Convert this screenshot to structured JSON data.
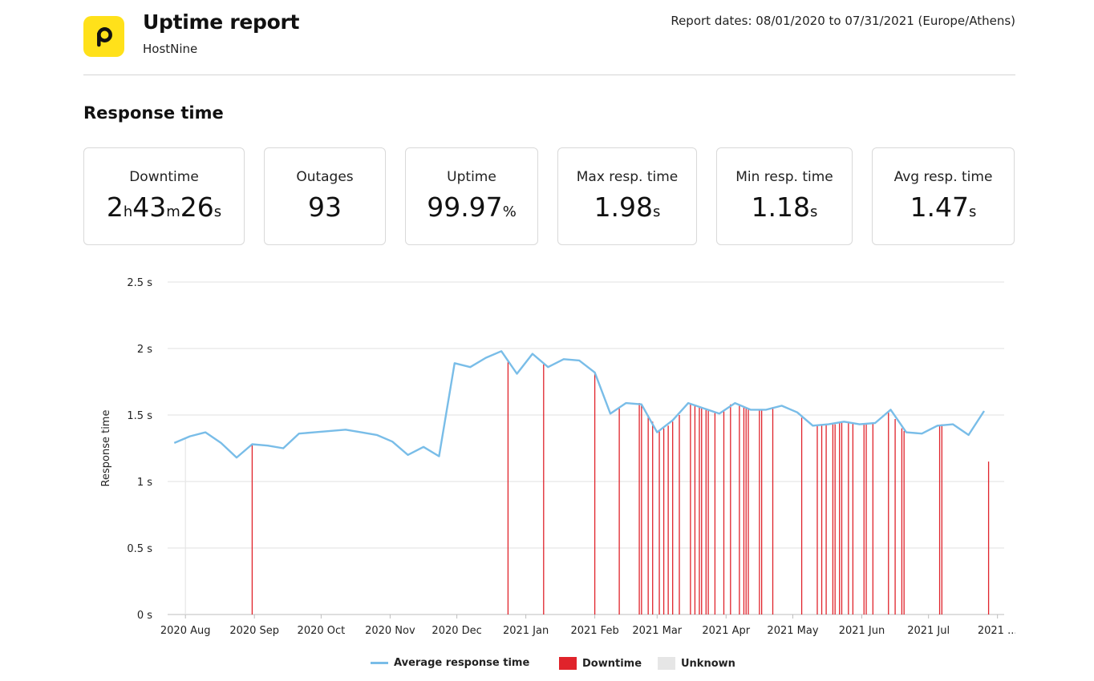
{
  "header": {
    "title": "Uptime report",
    "subtitle": "HostNine",
    "dates": "Report dates: 08/01/2020 to 07/31/2021 (Europe/Athens)",
    "logo_icon": "p-logo-icon"
  },
  "section_title": "Response time",
  "stats": [
    {
      "label": "Downtime",
      "parts": [
        [
          "2",
          false
        ],
        [
          "h",
          true
        ],
        [
          "43",
          false
        ],
        [
          "m",
          true
        ],
        [
          "26",
          false
        ],
        [
          "s",
          true
        ]
      ]
    },
    {
      "label": "Outages",
      "parts": [
        [
          "93",
          false
        ]
      ]
    },
    {
      "label": "Uptime",
      "parts": [
        [
          "99.97",
          false
        ],
        [
          "%",
          true
        ]
      ]
    },
    {
      "label": "Max resp. time",
      "parts": [
        [
          "1.98",
          false
        ],
        [
          "s",
          true
        ]
      ]
    },
    {
      "label": "Min resp. time",
      "parts": [
        [
          "1.18",
          false
        ],
        [
          "s",
          true
        ]
      ]
    },
    {
      "label": "Avg resp. time",
      "parts": [
        [
          "1.47",
          false
        ],
        [
          "s",
          true
        ]
      ]
    }
  ],
  "chart_data": {
    "type": "line",
    "ylabel": "Response time",
    "xlabel": "",
    "ylim": [
      0,
      2.5
    ],
    "xlim": [
      "2020-07-24",
      "2021-08-04"
    ],
    "y_ticks": [
      {
        "value": 0,
        "label": "0  s"
      },
      {
        "value": 0.5,
        "label": "0.5  s"
      },
      {
        "value": 1,
        "label": "1  s"
      },
      {
        "value": 1.5,
        "label": "1.5  s"
      },
      {
        "value": 2,
        "label": "2  s"
      },
      {
        "value": 2.5,
        "label": "2.5  s"
      }
    ],
    "x_ticks": [
      {
        "date": "2020-08-01",
        "label": "2020 Aug"
      },
      {
        "date": "2020-09-01",
        "label": "2020 Sep"
      },
      {
        "date": "2020-10-01",
        "label": "2020 Oct"
      },
      {
        "date": "2020-11-01",
        "label": "2020 Nov"
      },
      {
        "date": "2020-12-01",
        "label": "2020 Dec"
      },
      {
        "date": "2021-01-01",
        "label": "2021 Jan"
      },
      {
        "date": "2021-02-01",
        "label": "2021 Feb"
      },
      {
        "date": "2021-03-01",
        "label": "2021 Mar"
      },
      {
        "date": "2021-04-01",
        "label": "2021 Apr"
      },
      {
        "date": "2021-05-01",
        "label": "2021 May"
      },
      {
        "date": "2021-06-01",
        "label": "2021 Jun"
      },
      {
        "date": "2021-07-01",
        "label": "2021 Jul"
      },
      {
        "date": "2021-08-01",
        "label": "2021 ..."
      }
    ],
    "grid": true,
    "legend_position": "bottom",
    "series": [
      {
        "name": "Average response time",
        "color": "#79bde8",
        "points": [
          [
            "2020-07-27",
            1.29
          ],
          [
            "2020-08-03",
            1.34
          ],
          [
            "2020-08-10",
            1.37
          ],
          [
            "2020-08-17",
            1.29
          ],
          [
            "2020-08-24",
            1.18
          ],
          [
            "2020-08-31",
            1.28
          ],
          [
            "2020-09-07",
            1.27
          ],
          [
            "2020-09-14",
            1.25
          ],
          [
            "2020-09-21",
            1.36
          ],
          [
            "2020-09-28",
            1.37
          ],
          [
            "2020-10-05",
            1.38
          ],
          [
            "2020-10-12",
            1.39
          ],
          [
            "2020-10-19",
            1.37
          ],
          [
            "2020-10-26",
            1.35
          ],
          [
            "2020-11-02",
            1.3
          ],
          [
            "2020-11-09",
            1.2
          ],
          [
            "2020-11-16",
            1.26
          ],
          [
            "2020-11-23",
            1.19
          ],
          [
            "2020-11-30",
            1.89
          ],
          [
            "2020-12-07",
            1.86
          ],
          [
            "2020-12-14",
            1.93
          ],
          [
            "2020-12-21",
            1.98
          ],
          [
            "2020-12-28",
            1.81
          ],
          [
            "2021-01-04",
            1.96
          ],
          [
            "2021-01-11",
            1.86
          ],
          [
            "2021-01-18",
            1.92
          ],
          [
            "2021-01-25",
            1.91
          ],
          [
            "2021-02-01",
            1.82
          ],
          [
            "2021-02-08",
            1.51
          ],
          [
            "2021-02-15",
            1.59
          ],
          [
            "2021-02-22",
            1.58
          ],
          [
            "2021-03-01",
            1.37
          ],
          [
            "2021-03-08",
            1.46
          ],
          [
            "2021-03-15",
            1.59
          ],
          [
            "2021-03-22",
            1.55
          ],
          [
            "2021-03-29",
            1.51
          ],
          [
            "2021-04-05",
            1.59
          ],
          [
            "2021-04-12",
            1.54
          ],
          [
            "2021-04-19",
            1.54
          ],
          [
            "2021-04-26",
            1.57
          ],
          [
            "2021-05-03",
            1.52
          ],
          [
            "2021-05-10",
            1.42
          ],
          [
            "2021-05-17",
            1.43
          ],
          [
            "2021-05-24",
            1.45
          ],
          [
            "2021-05-31",
            1.43
          ],
          [
            "2021-06-07",
            1.44
          ],
          [
            "2021-06-14",
            1.54
          ],
          [
            "2021-06-21",
            1.37
          ],
          [
            "2021-06-28",
            1.36
          ],
          [
            "2021-07-05",
            1.42
          ],
          [
            "2021-07-12",
            1.43
          ],
          [
            "2021-07-19",
            1.35
          ],
          [
            "2021-07-26",
            1.53
          ]
        ]
      },
      {
        "name": "Downtime",
        "color": "#e0232b",
        "type": "event-bars",
        "events": [
          [
            "2020-08-31",
            1.28
          ],
          [
            "2020-12-24",
            1.9
          ],
          [
            "2021-01-09",
            1.88
          ],
          [
            "2021-02-01",
            1.82
          ],
          [
            "2021-02-12",
            1.55
          ],
          [
            "2021-02-21",
            1.59
          ],
          [
            "2021-02-22",
            1.58
          ],
          [
            "2021-02-25",
            1.5
          ],
          [
            "2021-02-27",
            1.45
          ],
          [
            "2021-03-02",
            1.38
          ],
          [
            "2021-03-04",
            1.4
          ],
          [
            "2021-03-06",
            1.42
          ],
          [
            "2021-03-08",
            1.45
          ],
          [
            "2021-03-11",
            1.5
          ],
          [
            "2021-03-16",
            1.58
          ],
          [
            "2021-03-18",
            1.57
          ],
          [
            "2021-03-20",
            1.56
          ],
          [
            "2021-03-21",
            1.55
          ],
          [
            "2021-03-23",
            1.55
          ],
          [
            "2021-03-24",
            1.54
          ],
          [
            "2021-03-27",
            1.52
          ],
          [
            "2021-03-31",
            1.53
          ],
          [
            "2021-04-03",
            1.58
          ],
          [
            "2021-04-07",
            1.57
          ],
          [
            "2021-04-09",
            1.56
          ],
          [
            "2021-04-10",
            1.55
          ],
          [
            "2021-04-11",
            1.55
          ],
          [
            "2021-04-16",
            1.54
          ],
          [
            "2021-04-17",
            1.54
          ],
          [
            "2021-04-22",
            1.56
          ],
          [
            "2021-05-05",
            1.48
          ],
          [
            "2021-05-12",
            1.42
          ],
          [
            "2021-05-14",
            1.43
          ],
          [
            "2021-05-16",
            1.43
          ],
          [
            "2021-05-19",
            1.43
          ],
          [
            "2021-05-20",
            1.43
          ],
          [
            "2021-05-22",
            1.44
          ],
          [
            "2021-05-23",
            1.45
          ],
          [
            "2021-05-26",
            1.44
          ],
          [
            "2021-05-28",
            1.44
          ],
          [
            "2021-06-02",
            1.43
          ],
          [
            "2021-06-03",
            1.43
          ],
          [
            "2021-06-06",
            1.44
          ],
          [
            "2021-06-13",
            1.52
          ],
          [
            "2021-06-16",
            1.47
          ],
          [
            "2021-06-19",
            1.4
          ],
          [
            "2021-06-20",
            1.38
          ],
          [
            "2021-07-06",
            1.42
          ],
          [
            "2021-07-07",
            1.43
          ],
          [
            "2021-07-28",
            1.15
          ]
        ]
      },
      {
        "name": "Unknown",
        "color": "#e6e6e6",
        "type": "event-bars",
        "events": [
          [
            "2020-08-01",
            1.32
          ]
        ]
      }
    ],
    "legend": [
      {
        "label": "Average response time",
        "kind": "line",
        "color": "#79bde8"
      },
      {
        "label": "Downtime",
        "kind": "box",
        "color": "#e0232b"
      },
      {
        "label": "Unknown",
        "kind": "box",
        "color": "#e6e6e6"
      }
    ]
  }
}
